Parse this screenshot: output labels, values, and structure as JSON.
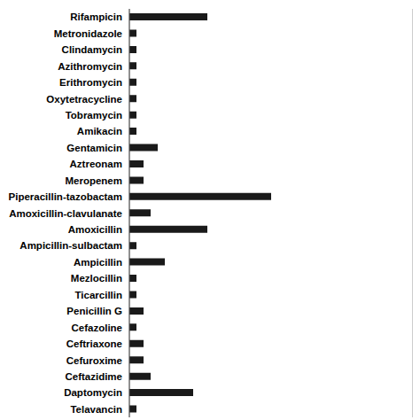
{
  "chart_data": {
    "type": "bar",
    "orientation": "horizontal",
    "categories": [
      "Rifampicin",
      "Metronidazole",
      "Clindamycin",
      "Azithromycin",
      "Erithromycin",
      "Oxytetracycline",
      "Tobramycin",
      "Amikacin",
      "Gentamicin",
      "Aztreonam",
      "Meropenem",
      "Piperacillin-tazobactam",
      "Amoxicillin-clavulanate",
      "Amoxicillin",
      "Ampicillin-sulbactam",
      "Ampicillin",
      "Mezlocillin",
      "Ticarcillin",
      "Penicillin G",
      "Cefazoline",
      "Ceftriaxone",
      "Cefuroxime",
      "Ceftazidime",
      "Daptomycin",
      "Telavancin"
    ],
    "values": [
      11,
      1,
      1,
      1,
      1,
      1,
      1,
      1,
      4,
      2,
      2,
      20,
      3,
      11,
      1,
      5,
      1,
      1,
      2,
      1,
      2,
      2,
      3,
      9,
      1
    ],
    "color": "#1a1a1a",
    "xlim": [
      0,
      40
    ],
    "xticks": [
      0,
      5,
      10,
      15,
      20,
      25,
      30,
      35,
      40
    ],
    "grid": true,
    "tick_labels": "y"
  }
}
